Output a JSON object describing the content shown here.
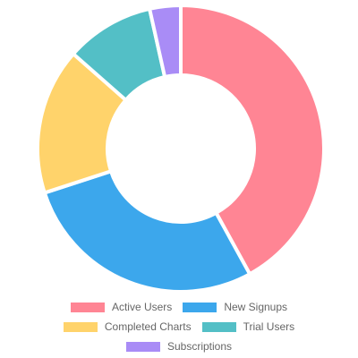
{
  "chart_data": {
    "type": "pie",
    "variant": "doughnut",
    "categories": [
      "Active Users",
      "New Signups",
      "Completed Charts",
      "Trial Users",
      "Subscriptions"
    ],
    "values": [
      42,
      28,
      16.5,
      10,
      3.5
    ],
    "colors": [
      "#ff8594",
      "#3ca7ec",
      "#ffd36b",
      "#53bfc6",
      "#a98cf6"
    ],
    "title": "",
    "legend_position": "bottom"
  }
}
